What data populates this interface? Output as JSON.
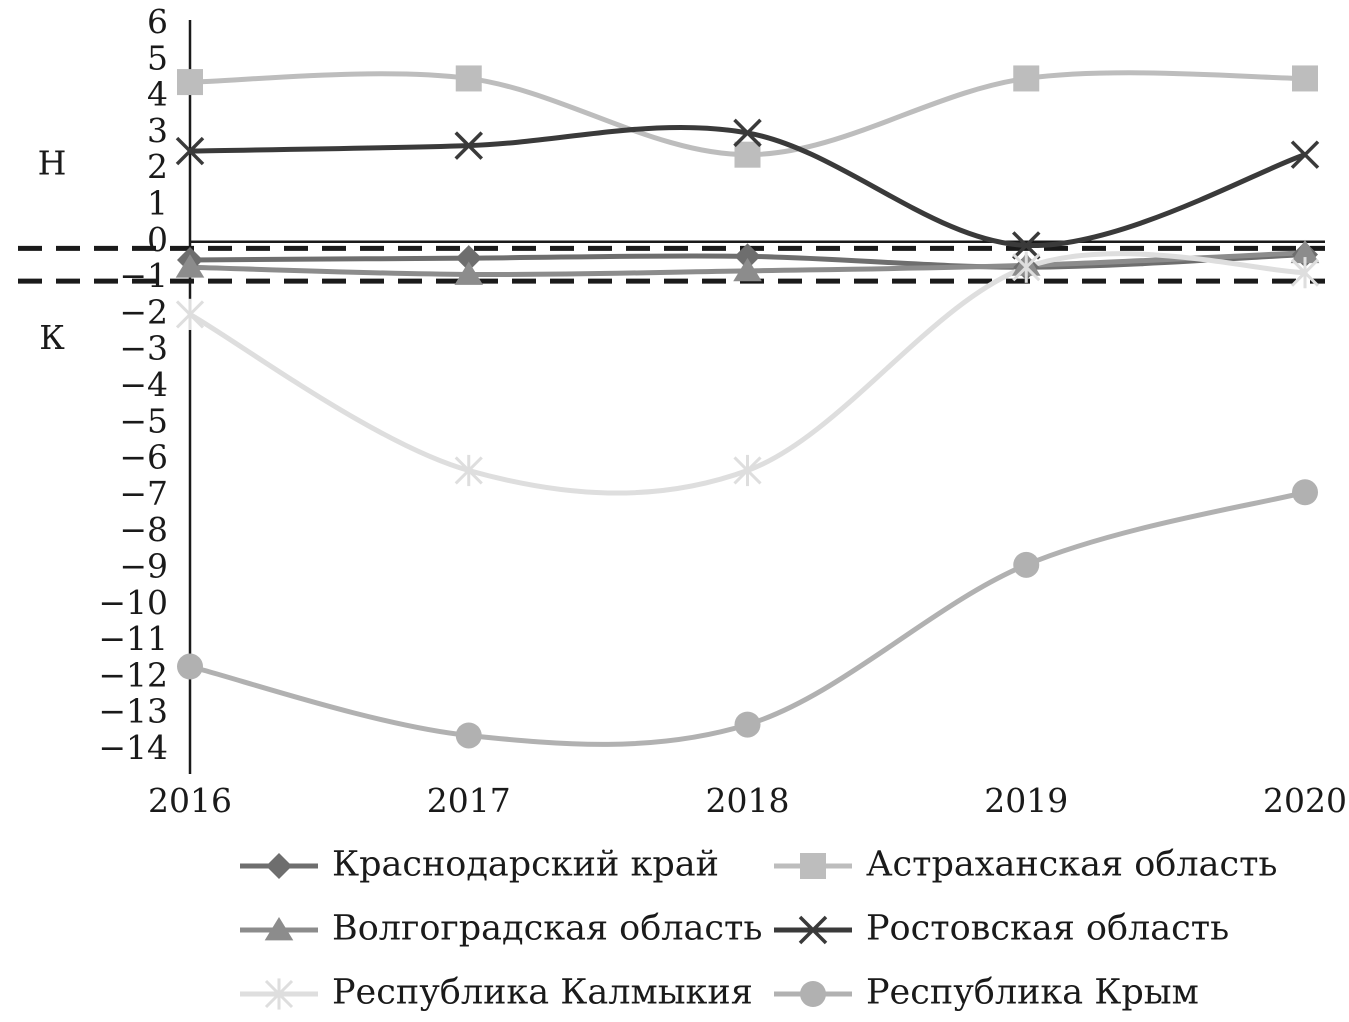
{
  "chart_data": {
    "type": "line",
    "title": "",
    "xlabel": "",
    "ylabel": "",
    "x": [
      "2016",
      "2017",
      "2018",
      "2019",
      "2020"
    ],
    "y_ticks": [
      "6",
      "5",
      "4",
      "3",
      "2",
      "1",
      "0",
      "−1",
      "−2",
      "−3",
      "−4",
      "−5",
      "−6",
      "−7",
      "−8",
      "−9",
      "−10",
      "−11",
      "−12",
      "−13",
      "−14"
    ],
    "ylim": [
      -14,
      6
    ],
    "grid": false,
    "reference_lines": {
      "solid": [
        0
      ],
      "dashed": [
        -0.1,
        -1.0
      ]
    },
    "zone_labels": {
      "upper": "Н",
      "lower": "К"
    },
    "legend_position": "bottom",
    "series": [
      {
        "name": "Краснодарский край",
        "marker": "diamond",
        "color": "#6e6e6e",
        "values": [
          -0.5,
          -0.45,
          -0.4,
          -0.7,
          -0.35
        ]
      },
      {
        "name": "Астраханская область",
        "marker": "square",
        "color": "#bdbdbd",
        "values": [
          4.4,
          4.5,
          2.4,
          4.5,
          4.5
        ]
      },
      {
        "name": "Волгоградская область",
        "marker": "triangle",
        "color": "#8c8c8c",
        "values": [
          -0.7,
          -0.9,
          -0.8,
          -0.65,
          -0.3
        ]
      },
      {
        "name": "Ростовская область",
        "marker": "x",
        "color": "#3a3a3a",
        "values": [
          2.5,
          2.65,
          3.0,
          -0.1,
          2.4
        ]
      },
      {
        "name": "Республика Калмыкия",
        "marker": "asterisk",
        "color": "#dedede",
        "values": [
          -2.0,
          -6.3,
          -6.3,
          -0.7,
          -0.85
        ]
      },
      {
        "name": "Республика Крым",
        "marker": "circle",
        "color": "#b1b1b1",
        "values": [
          -11.7,
          -13.6,
          -13.3,
          -8.9,
          -6.9
        ]
      }
    ]
  }
}
